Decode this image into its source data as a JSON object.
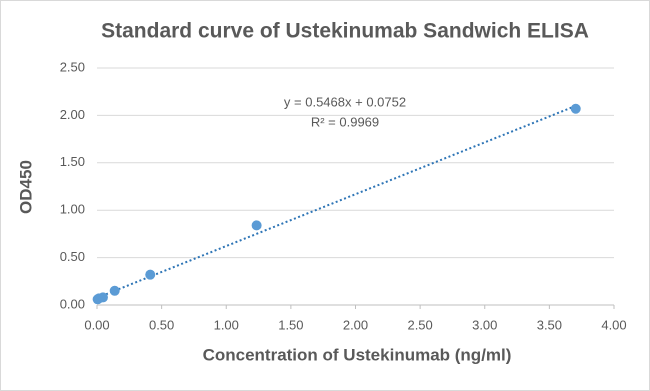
{
  "chart_data": {
    "type": "scatter",
    "title": "Standard curve of Ustekinumab Sandwich ELISA",
    "x_label": "Concentration of Ustekinumab (ng/ml)",
    "y_label": "OD450",
    "series": [
      {
        "color": "#5b9bd5",
        "x": [
          0.005,
          0.015,
          0.046,
          0.137,
          0.412,
          1.235,
          3.704
        ],
        "values": [
          0.06,
          0.07,
          0.08,
          0.15,
          0.32,
          0.84,
          2.07
        ]
      }
    ],
    "trendline": {
      "slope": 0.5468,
      "intercept": 0.0752,
      "color": "#2e75b6",
      "equation": "y = 0.5468x + 0.0752",
      "r_squared": "R² = 0.9969"
    },
    "xlim": [
      0,
      4
    ],
    "ylim": [
      0,
      2.5
    ],
    "xticks": [
      {
        "value": 0,
        "label": "0.00"
      },
      {
        "value": 0.5,
        "label": "0.50"
      },
      {
        "value": 1,
        "label": "1.00"
      },
      {
        "value": 1.5,
        "label": "1.50"
      },
      {
        "value": 2,
        "label": "2.00"
      },
      {
        "value": 2.5,
        "label": "2.50"
      },
      {
        "value": 3,
        "label": "3.00"
      },
      {
        "value": 3.5,
        "label": "3.50"
      },
      {
        "value": 4,
        "label": "4.00"
      }
    ],
    "yticks": [
      {
        "value": 0,
        "label": "0.00"
      },
      {
        "value": 0.5,
        "label": "0.50"
      },
      {
        "value": 1,
        "label": "1.00"
      },
      {
        "value": 1.5,
        "label": "1.50"
      },
      {
        "value": 2,
        "label": "2.00"
      },
      {
        "value": 2.5,
        "label": "2.50"
      }
    ],
    "grid": true
  }
}
